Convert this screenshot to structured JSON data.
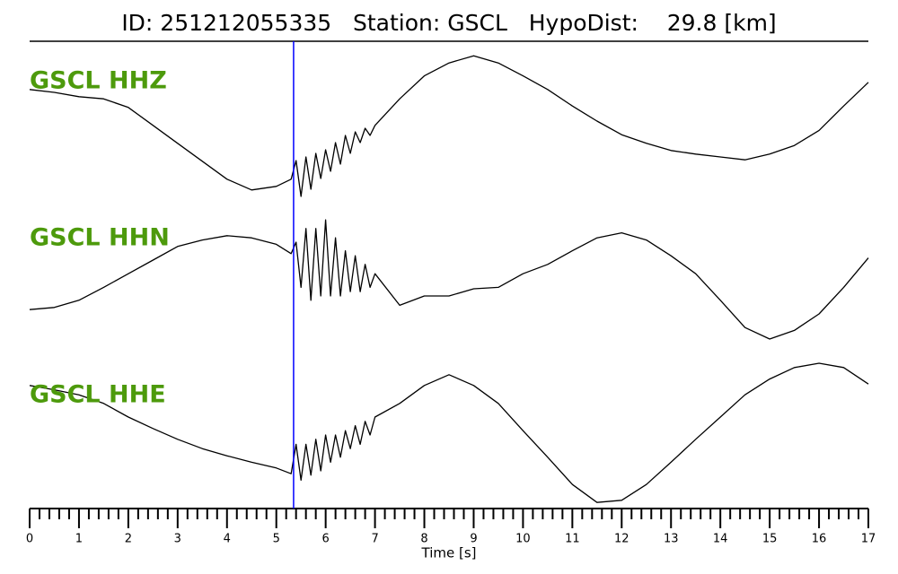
{
  "chart_data": {
    "type": "line",
    "title": "ID: 251212055335   Station: GSCL   HypoDist:    29.8 [km]",
    "xlabel": "Time [s]",
    "x": [
      0,
      0.5,
      1,
      1.5,
      2,
      2.5,
      3,
      3.5,
      4,
      4.5,
      5,
      5.3,
      5.4,
      5.5,
      5.6,
      5.7,
      5.8,
      5.9,
      6.0,
      6.1,
      6.2,
      6.3,
      6.4,
      6.5,
      6.6,
      6.7,
      6.8,
      6.9,
      7.0,
      7.5,
      8,
      8.5,
      9,
      9.5,
      10,
      10.5,
      11,
      11.5,
      12,
      12.5,
      13,
      13.5,
      14,
      14.5,
      15,
      15.5,
      16,
      16.5,
      17
    ],
    "series": [
      {
        "name": "GSCL HHZ",
        "color": "#000000",
        "label_color": "#4d9a0c",
        "values": [
          0.44,
          0.4,
          0.34,
          0.31,
          0.19,
          -0.06,
          -0.31,
          -0.56,
          -0.81,
          -0.96,
          -0.91,
          -0.81,
          -0.55,
          -1.05,
          -0.5,
          -0.95,
          -0.45,
          -0.8,
          -0.4,
          -0.7,
          -0.3,
          -0.6,
          -0.2,
          -0.45,
          -0.15,
          -0.3,
          -0.1,
          -0.2,
          -0.06,
          0.31,
          0.63,
          0.81,
          0.91,
          0.81,
          0.63,
          0.44,
          0.21,
          0,
          -0.19,
          -0.31,
          -0.41,
          -0.46,
          -0.5,
          -0.54,
          -0.46,
          -0.34,
          -0.13,
          0.21,
          0.54
        ]
      },
      {
        "name": "GSCL HHN",
        "color": "#000000",
        "label_color": "#4d9a0c",
        "values": [
          -0.44,
          -0.41,
          -0.31,
          -0.13,
          0.06,
          0.25,
          0.44,
          0.53,
          0.59,
          0.56,
          0.47,
          0.34,
          0.5,
          -0.13,
          0.69,
          -0.31,
          0.69,
          -0.25,
          0.81,
          -0.25,
          0.56,
          -0.25,
          0.38,
          -0.19,
          0.31,
          -0.19,
          0.19,
          -0.13,
          0.06,
          -0.38,
          -0.25,
          -0.25,
          -0.15,
          -0.13,
          0.06,
          0.19,
          0.38,
          0.56,
          0.63,
          0.53,
          0.31,
          0.06,
          -0.31,
          -0.69,
          -0.85,
          -0.73,
          -0.5,
          -0.13,
          0.28
        ]
      },
      {
        "name": "GSCL HHE",
        "color": "#000000",
        "label_color": "#4d9a0c",
        "values": [
          0.69,
          0.63,
          0.56,
          0.44,
          0.25,
          0.09,
          -0.06,
          -0.19,
          -0.29,
          -0.38,
          -0.46,
          -0.54,
          -0.13,
          -0.63,
          -0.13,
          -0.56,
          -0.06,
          -0.5,
          0,
          -0.38,
          0,
          -0.31,
          0.06,
          -0.19,
          0.13,
          -0.13,
          0.19,
          0,
          0.25,
          0.44,
          0.69,
          0.84,
          0.69,
          0.44,
          0.06,
          -0.31,
          -0.69,
          -0.94,
          -0.91,
          -0.69,
          -0.38,
          -0.06,
          0.25,
          0.56,
          0.78,
          0.94,
          1.0,
          0.94,
          0.71
        ]
      }
    ],
    "xlim": [
      0,
      17
    ],
    "xticks": [
      0,
      1,
      2,
      3,
      4,
      5,
      6,
      7,
      8,
      9,
      10,
      11,
      12,
      13,
      14,
      15,
      16,
      17
    ],
    "minor_ticks_per_major": 5,
    "ylim": [
      -1,
      1
    ],
    "pick": {
      "x": 5.35,
      "color": "#0000ff"
    }
  }
}
